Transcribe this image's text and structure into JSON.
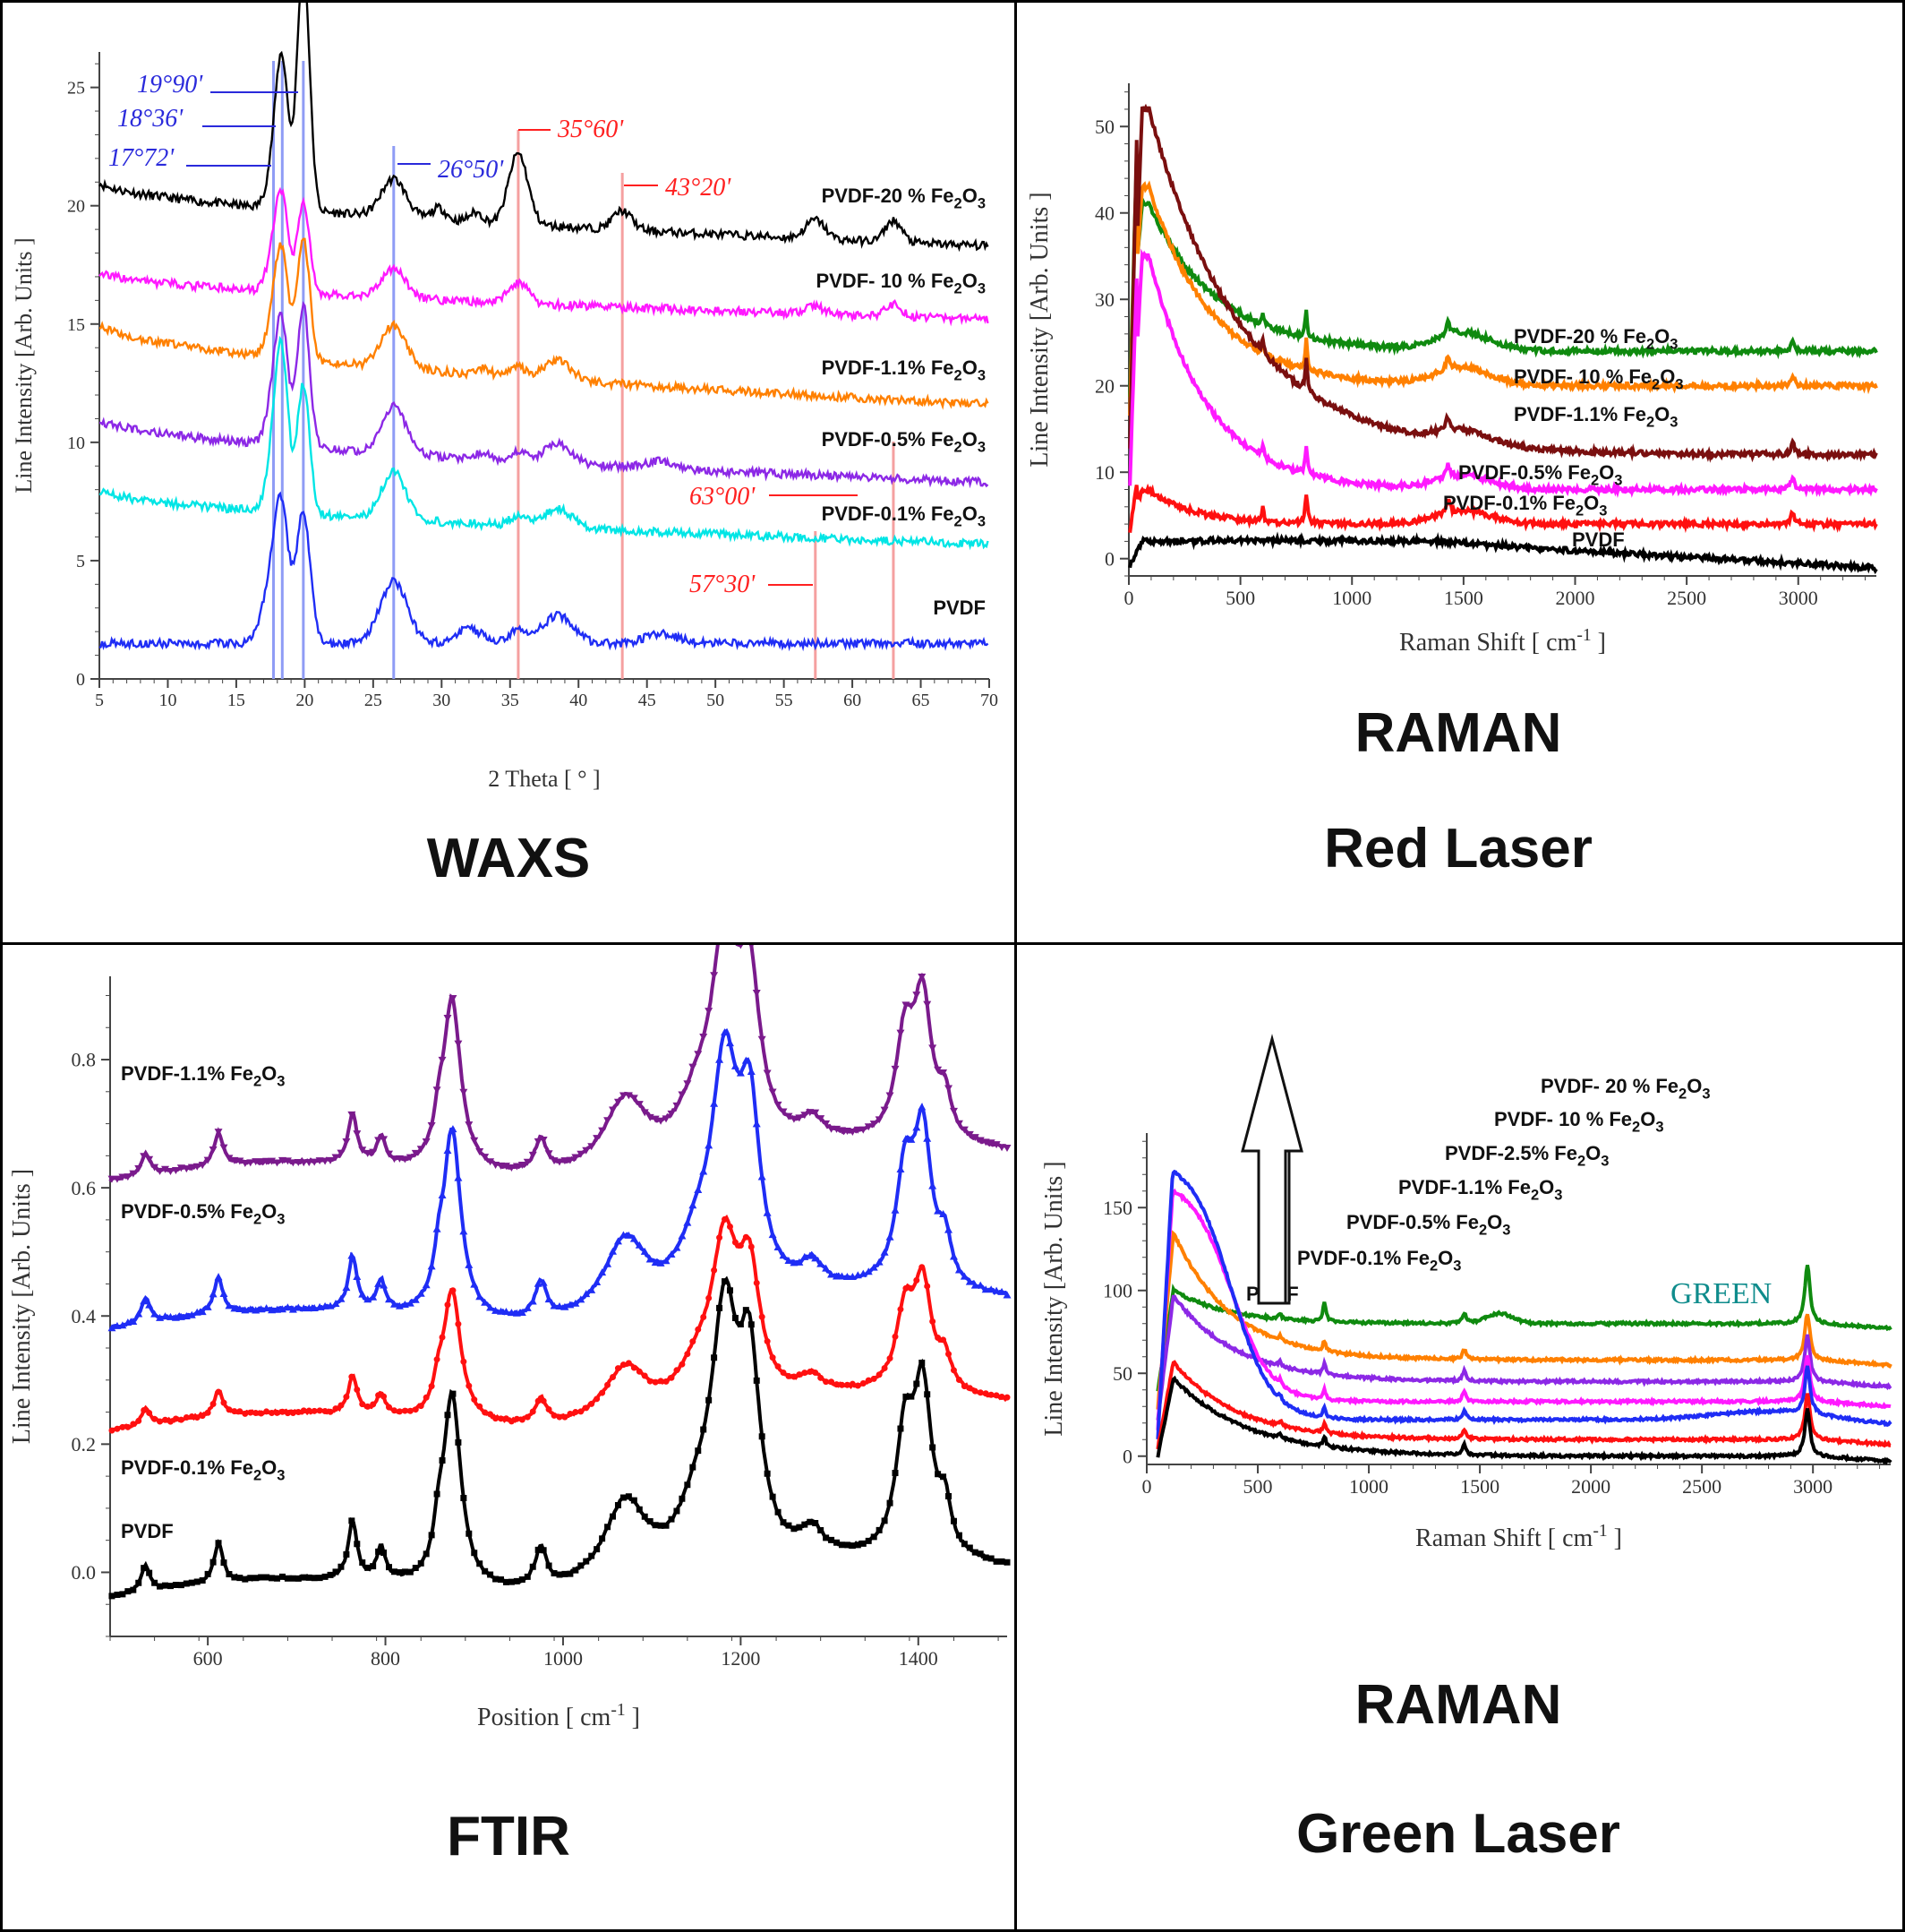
{
  "colors": {
    "black": "#000000",
    "blue": "#1f2df5",
    "cyan": "#00e5e5",
    "purple": "#8c28e6",
    "orange": "#ff8000",
    "magenta": "#ff19ff",
    "red": "#ff1010",
    "maroon": "#7a0f0f",
    "green": "#0f8a0f",
    "ftir_purple": "#7a1a8c",
    "annot_blue": "#2a2adb",
    "annot_red": "#ff2020",
    "teal": "#0f8c8c"
  },
  "panels": {
    "waxs": {
      "title": "WAXS",
      "chart_data": {
        "type": "line",
        "xlabel": "2 Theta [ ° ]",
        "ylabel": "Line Intensity [Arb. Units ]",
        "xlim": [
          5,
          70
        ],
        "ylim": [
          0,
          26.5
        ],
        "xticks": [
          5,
          10,
          15,
          20,
          25,
          30,
          35,
          40,
          45,
          50,
          55,
          60,
          65,
          70
        ],
        "yticks": [
          0,
          5,
          10,
          15,
          20,
          25
        ],
        "vlines_blue": [
          17.72,
          18.36,
          19.9,
          26.5
        ],
        "vlines_red": [
          35.6,
          43.2,
          57.3,
          63.0
        ],
        "annotations": [
          "19°90'",
          "18°36'",
          "17°72'",
          "26°50'",
          "35°60'",
          "43°20'",
          "63°00'",
          "57°30'"
        ],
        "series": [
          {
            "name": "PVDF-20 % Fe2O3",
            "name_main": "PVDF-20 % Fe",
            "name_sub": "2",
            "name_mid": "O",
            "name_sub2": "3",
            "color": "black",
            "baseline": [
              5,
              21,
              70,
              18.3
            ],
            "peaks": [
              [
                17.72,
                1.6,
                0.5
              ],
              [
                18.36,
                5.8,
                0.45
              ],
              [
                19.9,
                10.5,
                0.45
              ],
              [
                26.5,
                1.6,
                0.9
              ],
              [
                29.8,
                0.5,
                0.5
              ],
              [
                32.5,
                0.4,
                0.5
              ],
              [
                35.6,
                3.0,
                0.7
              ],
              [
                43.2,
                0.8,
                0.7
              ],
              [
                57.3,
                0.8,
                0.7
              ],
              [
                63.0,
                0.9,
                0.6
              ]
            ]
          },
          {
            "name": "PVDF-10 % Fe2O3",
            "name_main": "PVDF- 10 % Fe",
            "name_sub": "2",
            "name_mid": "O",
            "name_sub2": "3",
            "color": "magenta",
            "baseline": [
              5,
              17.2,
              70,
              15.2
            ],
            "peaks": [
              [
                17.72,
                1.5,
                0.5
              ],
              [
                18.36,
                3.5,
                0.45
              ],
              [
                19.9,
                3.8,
                0.45
              ],
              [
                26.5,
                1.2,
                0.9
              ],
              [
                35.6,
                0.9,
                0.7
              ],
              [
                57.3,
                0.3,
                0.7
              ],
              [
                63.0,
                0.5,
                0.6
              ]
            ]
          },
          {
            "name": "PVDF-1.1% Fe2O3",
            "name_main": "PVDF-1.1% Fe",
            "name_sub": "2",
            "name_mid": "O",
            "name_sub2": "3",
            "color": "orange",
            "baseline": [
              5,
              15,
              70,
              11.6
            ],
            "peaks": [
              [
                17.72,
                1.6,
                0.5
              ],
              [
                18.36,
                4.0,
                0.45
              ],
              [
                19.9,
                5.2,
                0.45
              ],
              [
                26.5,
                1.8,
                0.9
              ],
              [
                33,
                0.3,
                0.5
              ],
              [
                35.6,
                0.4,
                0.6
              ],
              [
                38.5,
                0.8,
                1.0
              ]
            ]
          },
          {
            "name": "PVDF-0.5% Fe2O3",
            "name_main": "PVDF-0.5% Fe",
            "name_sub": "2",
            "name_mid": "O",
            "name_sub2": "3",
            "color": "purple",
            "baseline": [
              5,
              11,
              70,
              8.3
            ],
            "peaks": [
              [
                17.72,
                2.0,
                0.5
              ],
              [
                18.36,
                4.5,
                0.45
              ],
              [
                19.9,
                6.0,
                0.45
              ],
              [
                26.5,
                2.0,
                0.9
              ],
              [
                33,
                0.3,
                0.5
              ],
              [
                35.6,
                0.4,
                0.6
              ],
              [
                38.5,
                0.8,
                1.0
              ],
              [
                46,
                0.3,
                1.0
              ]
            ]
          },
          {
            "name": "PVDF-0.1% Fe2O3",
            "name_main": "PVDF-0.1% Fe",
            "name_sub": "2",
            "name_mid": "O",
            "name_sub2": "3",
            "color": "cyan",
            "baseline": [
              5,
              8,
              70,
              5.7
            ],
            "peaks": [
              [
                17.72,
                2.5,
                0.5
              ],
              [
                18.36,
                6.0,
                0.45
              ],
              [
                19.9,
                5.5,
                0.45
              ],
              [
                26.5,
                2.0,
                0.9
              ],
              [
                35.6,
                0.4,
                0.6
              ],
              [
                38.5,
                0.8,
                1.0
              ]
            ]
          },
          {
            "name": "PVDF",
            "name_main": "PVDF",
            "color": "blue",
            "baseline": [
              5,
              1.5,
              70,
              1.5
            ],
            "peaks": [
              [
                17.72,
                3.0,
                0.7
              ],
              [
                18.36,
                4.0,
                0.5
              ],
              [
                19.9,
                5.5,
                0.5
              ],
              [
                26.5,
                2.6,
                1.0
              ],
              [
                32,
                0.6,
                1.0
              ],
              [
                35.6,
                0.6,
                0.7
              ],
              [
                38.5,
                1.2,
                1.1
              ],
              [
                46,
                0.4,
                1.2
              ]
            ]
          }
        ]
      }
    },
    "raman_red": {
      "title_line1": "RAMAN",
      "title_line2": "Red Laser",
      "chart_data": {
        "type": "line",
        "xlabel": "Raman Shift [ cm",
        "xlabel_sup": "-1",
        "xlabel_end": " ]",
        "ylabel": "Line Intensity [Arb. Units ]",
        "xlim": [
          0,
          3350
        ],
        "ylim": [
          -2,
          55
        ],
        "xticks": [
          0,
          500,
          1000,
          1500,
          2000,
          2500,
          3000
        ],
        "yticks": [
          0,
          10,
          20,
          30,
          40,
          50
        ],
        "series": [
          {
            "name": "PVDF-20 % Fe2O3",
            "name_main": "PVDF-20 % Fe",
            "name_sub": "2",
            "name_mid": "O",
            "name_sub2": "3",
            "color": "green",
            "base": 24,
            "peak": 41,
            "decay": 300
          },
          {
            "name": "PVDF-10 % Fe2O3",
            "name_main": "PVDF- 10 % Fe",
            "name_sub": "2",
            "name_mid": "O",
            "name_sub2": "3",
            "color": "orange",
            "base": 20,
            "peak": 43,
            "decay": 280
          },
          {
            "name": "PVDF-1.1% Fe2O3",
            "name_main": "PVDF-1.1% Fe",
            "name_sub": "2",
            "name_mid": "O",
            "name_sub2": "3",
            "color": "maroon",
            "base": 12,
            "peak": 52,
            "decay": 420
          },
          {
            "name": "PVDF-0.5% Fe2O3",
            "name_main": "PVDF-0.5% Fe",
            "name_sub": "2",
            "name_mid": "O",
            "name_sub2": "3",
            "color": "magenta",
            "base": 8,
            "peak": 35,
            "decay": 260
          },
          {
            "name": "PVDF-0.1% Fe2O3",
            "name_main": "PVDF-0.1% Fe",
            "name_sub": "2",
            "name_mid": "O",
            "name_sub2": "3",
            "color": "red",
            "base": 4,
            "peak": 8,
            "decay": 200
          },
          {
            "name": "PVDF",
            "name_main": "PVDF",
            "color": "black",
            "base": 0,
            "peak": 2,
            "decay": 0
          }
        ]
      }
    },
    "ftir": {
      "title": "FTIR",
      "chart_data": {
        "type": "line",
        "xlabel": "Position [ cm",
        "xlabel_sup": "-1",
        "xlabel_end": " ]",
        "ylabel": "Line Intensity [Arb. Units ]",
        "xlim": [
          490,
          1500
        ],
        "ylim": [
          -0.1,
          0.93
        ],
        "xticks": [
          600,
          800,
          1000,
          1200,
          1400
        ],
        "yticks": [
          0.0,
          0.2,
          0.4,
          0.6,
          0.8
        ],
        "ytick_labels": [
          "0.0",
          "0.2",
          "0.4",
          "0.6",
          "0.8"
        ],
        "series": [
          {
            "name": "PVDF-1.1% Fe2O3",
            "name_main": "PVDF-1.1% Fe",
            "name_sub": "2",
            "name_mid": "O",
            "name_sub2": "3",
            "color": "ftir_purple",
            "offset": 0.61,
            "scale": 0.85
          },
          {
            "name": "PVDF-0.5% Fe2O3",
            "name_main": "PVDF-0.5% Fe",
            "name_sub": "2",
            "name_mid": "O",
            "name_sub2": "3",
            "color": "blue",
            "offset": 0.38,
            "scale": 0.93
          },
          {
            "name": "PVDF-0.1% Fe2O3",
            "name_main": "PVDF-0.1% Fe",
            "name_sub": "2",
            "name_mid": "O",
            "name_sub2": "3",
            "color": "red",
            "offset": 0.22,
            "scale": 0.65
          },
          {
            "name": "PVDF",
            "name_main": "PVDF",
            "color": "black",
            "offset": -0.04,
            "scale": 1.0
          }
        ]
      }
    },
    "raman_green": {
      "title_line1": "RAMAN",
      "title_line2": "Green Laser",
      "green_label": "GREEN",
      "chart_data": {
        "type": "line",
        "xlabel": "Raman Shift [ cm",
        "xlabel_sup": "-1",
        "xlabel_end": " ]",
        "ylabel": "Line Intensity [Arb. Units ]",
        "xlim": [
          0,
          3350
        ],
        "ylim": [
          -5,
          195
        ],
        "xticks": [
          0,
          500,
          1000,
          1500,
          2000,
          2500,
          3000
        ],
        "yticks": [
          0,
          50,
          100,
          150
        ],
        "series": [
          {
            "name": "PVDF-20 % Fe2O3",
            "name_main": "PVDF- 20 % Fe",
            "name_sub": "2",
            "name_mid": "O",
            "name_sub2": "3",
            "color": "green",
            "base": 80,
            "peak": 100,
            "decay": 250
          },
          {
            "name": "PVDF-10 % Fe2O3",
            "name_main": "PVDF- 10 % Fe",
            "name_sub": "2",
            "name_mid": "O",
            "name_sub2": "3",
            "color": "orange",
            "base": 58,
            "peak": 135,
            "decay": 260
          },
          {
            "name": "PVDF-2.5% Fe2O3",
            "name_main": "PVDF-2.5% Fe",
            "name_sub": "2",
            "name_mid": "O",
            "name_sub2": "3",
            "color": "purple",
            "base": 45,
            "peak": 97,
            "decay": 280
          },
          {
            "name": "PVDF-1.1% Fe2O3",
            "name_main": "PVDF-1.1% Fe",
            "name_sub": "2",
            "name_mid": "O",
            "name_sub2": "3",
            "color": "magenta",
            "base": 33,
            "peak": 167,
            "decay": 230
          },
          {
            "name": "PVDF-0.5% Fe2O3",
            "name_main": "PVDF-0.5% Fe",
            "name_sub": "2",
            "name_mid": "O",
            "name_sub2": "3",
            "color": "blue",
            "base": 22,
            "peak": 180,
            "decay": 260
          },
          {
            "name": "PVDF-0.1% Fe2O3",
            "name_main": "PVDF-0.1% Fe",
            "name_sub": "2",
            "name_mid": "O",
            "name_sub2": "3",
            "color": "red",
            "base": 10,
            "peak": 57,
            "decay": 280
          },
          {
            "name": "PVDF",
            "name_main": "PVDF",
            "color": "black",
            "base": 0,
            "peak": 47,
            "decay": 330
          }
        ]
      }
    }
  }
}
